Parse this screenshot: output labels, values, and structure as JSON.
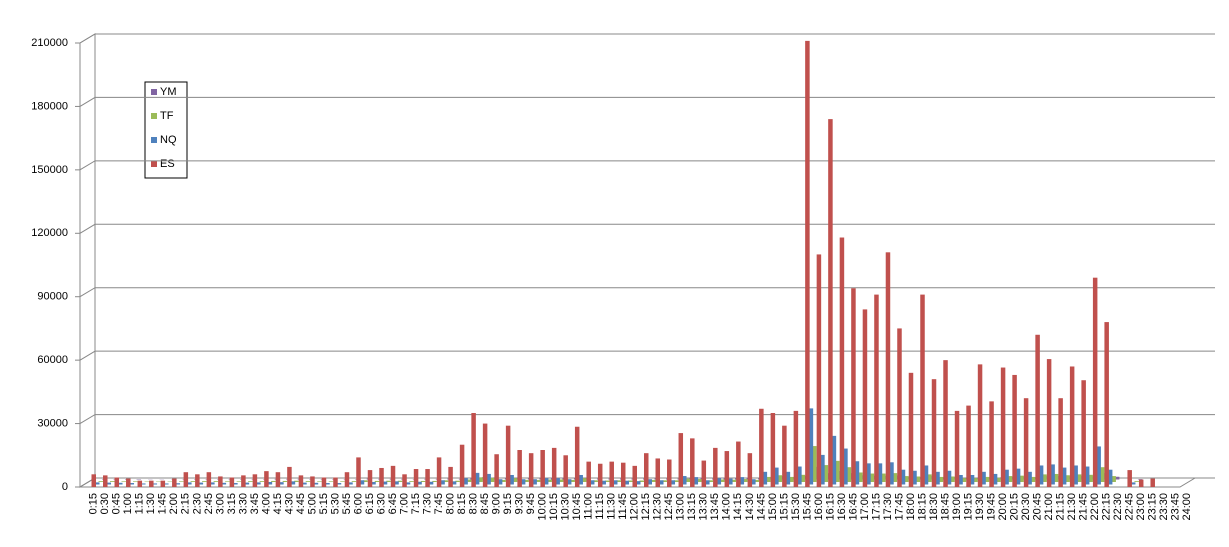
{
  "chart_data": {
    "type": "bar3d",
    "categories": [
      "0:15",
      "0:30",
      "0:45",
      "1:00",
      "1:15",
      "1:30",
      "1:45",
      "2:00",
      "2:15",
      "2:30",
      "2:45",
      "3:00",
      "3:15",
      "3:30",
      "3:45",
      "4:00",
      "4:15",
      "4:30",
      "4:45",
      "5:00",
      "5:15",
      "5:30",
      "5:45",
      "6:00",
      "6:15",
      "6:30",
      "6:45",
      "7:00",
      "7:15",
      "7:30",
      "7:45",
      "8:00",
      "8:15",
      "8:30",
      "8:45",
      "9:00",
      "9:15",
      "9:30",
      "9:45",
      "10:00",
      "10:15",
      "10:30",
      "10:45",
      "11:00",
      "11:15",
      "11:30",
      "11:45",
      "12:00",
      "12:15",
      "12:30",
      "12:45",
      "13:00",
      "13:15",
      "13:30",
      "13:45",
      "14:00",
      "14:15",
      "14:30",
      "14:45",
      "15:00",
      "15:15",
      "15:30",
      "15:45",
      "16:00",
      "16:15",
      "16:30",
      "16:45",
      "17:00",
      "17:15",
      "17:30",
      "17:45",
      "18:00",
      "18:15",
      "18:30",
      "18:45",
      "19:00",
      "19:15",
      "19:30",
      "19:45",
      "20:00",
      "20:15",
      "20:30",
      "20:45",
      "21:00",
      "21:15",
      "21:30",
      "21:45",
      "22:00",
      "22:15",
      "22:30",
      "22:45",
      "23:00",
      "23:15",
      "23:30",
      "23:45",
      "24:00"
    ],
    "series": [
      {
        "name": "ES",
        "color": "#c0504d",
        "values": [
          6000,
          5500,
          4500,
          4000,
          3000,
          3000,
          3000,
          4000,
          7000,
          6000,
          7000,
          5000,
          4500,
          5500,
          6000,
          7500,
          7000,
          9500,
          5500,
          5000,
          4500,
          4500,
          7000,
          14000,
          8000,
          9000,
          10000,
          6000,
          8500,
          8500,
          14000,
          9500,
          20000,
          35000,
          30000,
          15500,
          29000,
          17500,
          16000,
          17500,
          18500,
          15000,
          28500,
          12000,
          11000,
          12000,
          11500,
          10000,
          16000,
          13500,
          13000,
          25500,
          23000,
          12500,
          18500,
          17000,
          21500,
          16000,
          37000,
          35000,
          29000,
          36000,
          211000,
          110000,
          174000,
          118000,
          94000,
          84000,
          91000,
          111000,
          75000,
          54000,
          91000,
          51000,
          60000,
          36000,
          38500,
          58000,
          40500,
          56500,
          53000,
          42000,
          72000,
          60500,
          42000,
          57000,
          50500,
          99000,
          78000,
          0,
          8000,
          3500,
          4000,
          0,
          0,
          0
        ]
      },
      {
        "name": "NQ",
        "color": "#4f81bd",
        "values": [
          1000,
          900,
          800,
          700,
          500,
          500,
          500,
          600,
          1000,
          900,
          1000,
          800,
          700,
          900,
          1000,
          1200,
          1100,
          1500,
          900,
          800,
          700,
          700,
          1000,
          2000,
          1200,
          1400,
          1500,
          1000,
          1300,
          1300,
          2000,
          1500,
          3000,
          5500,
          5000,
          2500,
          4500,
          2500,
          2500,
          3000,
          3000,
          2500,
          4500,
          2000,
          1800,
          2000,
          1800,
          1600,
          2500,
          2000,
          2000,
          4000,
          3500,
          2000,
          3000,
          2800,
          3500,
          2500,
          6000,
          8000,
          6000,
          8500,
          36000,
          14000,
          23000,
          17000,
          11000,
          10000,
          10000,
          10500,
          7000,
          6500,
          9000,
          6000,
          6500,
          4500,
          4500,
          6000,
          5000,
          7000,
          7500,
          6000,
          9000,
          9500,
          8000,
          9000,
          8500,
          18000,
          7000,
          0,
          1000,
          0,
          0,
          0,
          0,
          0
        ]
      },
      {
        "name": "TF",
        "color": "#9bbb59",
        "values": [
          400,
          400,
          300,
          300,
          200,
          200,
          200,
          300,
          400,
          400,
          400,
          300,
          300,
          400,
          400,
          500,
          500,
          600,
          400,
          300,
          300,
          300,
          400,
          800,
          500,
          600,
          600,
          400,
          500,
          500,
          800,
          600,
          1200,
          2200,
          2000,
          1000,
          1800,
          1000,
          1000,
          1200,
          1200,
          1000,
          1800,
          800,
          700,
          800,
          700,
          700,
          1000,
          800,
          800,
          1600,
          1400,
          800,
          1200,
          1100,
          1400,
          1000,
          2400,
          3200,
          2400,
          3400,
          17000,
          8000,
          10000,
          7000,
          4500,
          4000,
          4000,
          4200,
          2800,
          2600,
          3600,
          2400,
          2600,
          1800,
          1800,
          2400,
          2000,
          2800,
          3000,
          2400,
          3600,
          3800,
          3200,
          3600,
          3400,
          7000,
          2800,
          0,
          400,
          0,
          0,
          0,
          0,
          0
        ]
      },
      {
        "name": "YM",
        "color": "#8064a2",
        "values": [
          200,
          200,
          200,
          200,
          100,
          100,
          100,
          200,
          200,
          200,
          200,
          200,
          200,
          200,
          200,
          300,
          300,
          300,
          200,
          200,
          200,
          200,
          200,
          400,
          300,
          300,
          300,
          200,
          300,
          300,
          400,
          300,
          600,
          1100,
          1000,
          500,
          900,
          500,
          500,
          600,
          600,
          500,
          900,
          400,
          400,
          400,
          400,
          400,
          500,
          400,
          400,
          800,
          700,
          400,
          600,
          600,
          700,
          500,
          1200,
          1600,
          1200,
          1700,
          6000,
          3000,
          4000,
          3000,
          2000,
          1800,
          1800,
          1900,
          1300,
          1200,
          1600,
          1100,
          1200,
          900,
          900,
          1100,
          1000,
          1300,
          1400,
          1100,
          1600,
          1700,
          1500,
          1600,
          1500,
          3000,
          1300,
          0,
          200,
          0,
          0,
          0,
          0,
          0
        ]
      }
    ],
    "ylim": [
      0,
      210000
    ],
    "yticks": [
      0,
      30000,
      60000,
      90000,
      120000,
      150000,
      180000,
      210000
    ],
    "grid": true
  }
}
